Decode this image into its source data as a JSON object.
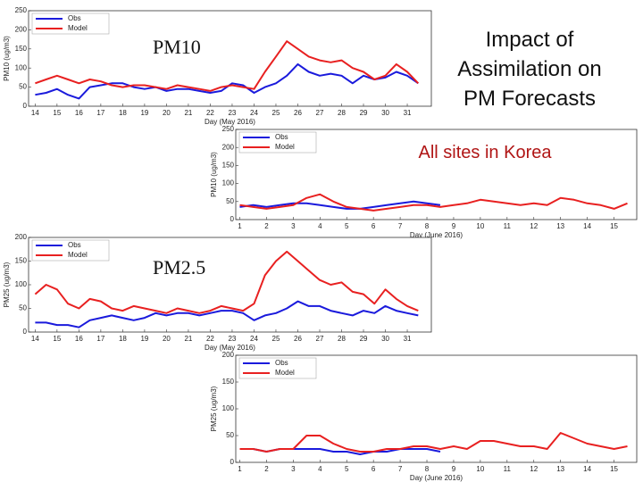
{
  "title": "Impact of Assimilation on PM Forecasts",
  "subtitle": "All sites in Korea",
  "labels": [
    "PM10",
    "PM2.5"
  ],
  "chart_data": [
    {
      "type": "line",
      "xlabel": "Day (May 2016)",
      "ylabel": "PM10 (ug/m3)",
      "xlim": [
        13.7,
        32.1
      ],
      "xticks": [
        14,
        15,
        16,
        17,
        18,
        19,
        20,
        21,
        22,
        23,
        24,
        25,
        26,
        27,
        28,
        29,
        30,
        31
      ],
      "ylim": [
        0,
        250
      ],
      "yticks": [
        0,
        50,
        100,
        150,
        200,
        250
      ],
      "legend": "upper left",
      "x": [
        14,
        14.5,
        15,
        15.5,
        16,
        16.5,
        17,
        17.5,
        18,
        18.5,
        19,
        19.5,
        20,
        20.5,
        21,
        21.5,
        22,
        22.5,
        23,
        23.5,
        24,
        24.5,
        25,
        25.5,
        26,
        26.5,
        27,
        27.5,
        28,
        28.5,
        29,
        29.5,
        30,
        30.5,
        31,
        31.5
      ],
      "series": [
        {
          "name": "Obs",
          "color": "#1a1adc",
          "values": [
            30,
            35,
            45,
            30,
            20,
            50,
            55,
            60,
            60,
            50,
            45,
            50,
            40,
            45,
            45,
            40,
            35,
            40,
            60,
            55,
            35,
            50,
            60,
            80,
            110,
            90,
            80,
            85,
            80,
            60,
            80,
            70,
            75,
            90,
            80,
            60
          ]
        },
        {
          "name": "Model",
          "color": "#e82020",
          "values": [
            60,
            70,
            80,
            70,
            60,
            70,
            65,
            55,
            50,
            55,
            55,
            50,
            45,
            55,
            50,
            45,
            40,
            50,
            55,
            50,
            45,
            90,
            130,
            170,
            150,
            130,
            120,
            115,
            120,
            100,
            90,
            70,
            80,
            110,
            90,
            60
          ]
        }
      ]
    },
    {
      "type": "line",
      "xlabel": "Day (June 2016)",
      "ylabel": "PM10 (ug/m3)",
      "xlim": [
        0.85,
        15.85
      ],
      "xticks": [
        1,
        2,
        3,
        4,
        5,
        6,
        7,
        8,
        9,
        10,
        11,
        12,
        13,
        14,
        15
      ],
      "ylim": [
        0,
        250
      ],
      "yticks": [
        0,
        50,
        100,
        150,
        200,
        250
      ],
      "legend": "upper left",
      "x": [
        1,
        1.5,
        2,
        2.5,
        3,
        3.5,
        4,
        4.5,
        5,
        5.5,
        6,
        6.5,
        7,
        7.5,
        8,
        8.5,
        9,
        9.5,
        10,
        10.5,
        11,
        11.5,
        12,
        12.5,
        13,
        13.5,
        14,
        14.5,
        15,
        15.5
      ],
      "series": [
        {
          "name": "Obs",
          "color": "#1a1adc",
          "values": [
            35,
            40,
            35,
            40,
            45,
            45,
            40,
            35,
            30,
            30,
            35,
            40,
            45,
            50,
            45,
            40,
            null,
            null,
            null,
            null,
            null,
            null,
            null,
            null,
            null,
            null,
            null,
            null,
            null,
            null
          ]
        },
        {
          "name": "Model",
          "color": "#e82020",
          "values": [
            40,
            35,
            30,
            35,
            40,
            60,
            70,
            50,
            35,
            30,
            25,
            30,
            35,
            40,
            40,
            35,
            40,
            45,
            55,
            50,
            45,
            40,
            45,
            40,
            60,
            55,
            45,
            40,
            30,
            45
          ]
        }
      ]
    },
    {
      "type": "line",
      "xlabel": "Day (May 2016)",
      "ylabel": "PM25 (ug/m3)",
      "xlim": [
        13.7,
        32.1
      ],
      "xticks": [
        14,
        15,
        16,
        17,
        18,
        19,
        20,
        21,
        22,
        23,
        24,
        25,
        26,
        27,
        28,
        29,
        30,
        31
      ],
      "ylim": [
        0,
        200
      ],
      "yticks": [
        0,
        50,
        100,
        150,
        200
      ],
      "legend": "upper left",
      "x": [
        14,
        14.5,
        15,
        15.5,
        16,
        16.5,
        17,
        17.5,
        18,
        18.5,
        19,
        19.5,
        20,
        20.5,
        21,
        21.5,
        22,
        22.5,
        23,
        23.5,
        24,
        24.5,
        25,
        25.5,
        26,
        26.5,
        27,
        27.5,
        28,
        28.5,
        29,
        29.5,
        30,
        30.5,
        31,
        31.5
      ],
      "series": [
        {
          "name": "Obs",
          "color": "#1a1adc",
          "values": [
            20,
            20,
            15,
            15,
            10,
            25,
            30,
            35,
            30,
            25,
            30,
            40,
            35,
            40,
            40,
            35,
            40,
            45,
            45,
            40,
            25,
            35,
            40,
            50,
            65,
            55,
            55,
            45,
            40,
            35,
            45,
            40,
            55,
            45,
            40,
            35
          ]
        },
        {
          "name": "Model",
          "color": "#e82020",
          "values": [
            80,
            100,
            90,
            60,
            50,
            70,
            65,
            50,
            45,
            55,
            50,
            45,
            40,
            50,
            45,
            40,
            45,
            55,
            50,
            45,
            60,
            120,
            150,
            170,
            150,
            130,
            110,
            100,
            105,
            85,
            80,
            60,
            90,
            70,
            55,
            45
          ]
        }
      ]
    },
    {
      "type": "line",
      "xlabel": "Day (June 2016)",
      "ylabel": "PM25 (ug/m3)",
      "xlim": [
        0.85,
        15.85
      ],
      "xticks": [
        1,
        2,
        3,
        4,
        5,
        6,
        7,
        8,
        9,
        10,
        11,
        12,
        13,
        14,
        15
      ],
      "ylim": [
        0,
        200
      ],
      "yticks": [
        0,
        50,
        100,
        150,
        200
      ],
      "legend": "upper left",
      "x": [
        1,
        1.5,
        2,
        2.5,
        3,
        3.5,
        4,
        4.5,
        5,
        5.5,
        6,
        6.5,
        7,
        7.5,
        8,
        8.5,
        9,
        9.5,
        10,
        10.5,
        11,
        11.5,
        12,
        12.5,
        13,
        13.5,
        14,
        14.5,
        15,
        15.5
      ],
      "series": [
        {
          "name": "Obs",
          "color": "#1a1adc",
          "values": [
            25,
            25,
            20,
            25,
            25,
            25,
            25,
            20,
            20,
            15,
            20,
            20,
            25,
            25,
            25,
            20,
            null,
            null,
            null,
            null,
            null,
            null,
            null,
            null,
            null,
            null,
            null,
            null,
            null,
            null
          ]
        },
        {
          "name": "Model",
          "color": "#e82020",
          "values": [
            25,
            25,
            20,
            25,
            25,
            50,
            50,
            35,
            25,
            20,
            20,
            25,
            25,
            30,
            30,
            25,
            30,
            25,
            40,
            40,
            35,
            30,
            30,
            25,
            55,
            45,
            35,
            30,
            25,
            30
          ]
        }
      ]
    }
  ]
}
